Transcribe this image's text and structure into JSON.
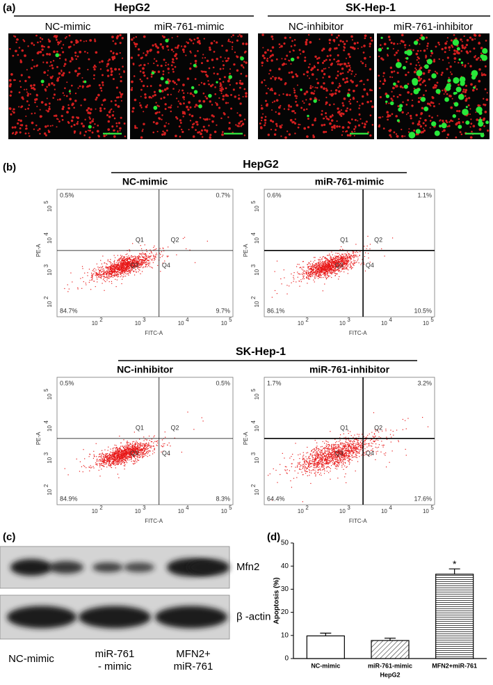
{
  "panel_a": {
    "label": "(a)",
    "groups": [
      {
        "title": "HepG2",
        "conditions": [
          "NC-mimic",
          "miR-761-mimic"
        ]
      },
      {
        "title": "SK-Hep-1",
        "conditions": [
          "NC-inhibitor",
          "miR-761-inhibitor"
        ]
      }
    ]
  },
  "panel_b": {
    "label": "(b)",
    "x_axis": "FITC-A",
    "y_axis": "PE-A",
    "quadrant_names": [
      "Q1",
      "Q2",
      "Q3",
      "Q4"
    ],
    "tick_base": "10",
    "tick_exponents": [
      "2",
      "3",
      "4",
      "5"
    ],
    "groups": [
      {
        "title": "HepG2",
        "plots": [
          {
            "title": "NC-mimic",
            "quadrants": [
              "0.5%",
              "0.7%",
              "84.7%",
              "9.7%"
            ]
          },
          {
            "title": "miR-761-mimic",
            "quadrants": [
              "0.6%",
              "1.1%",
              "86.1%",
              "10.5%"
            ]
          }
        ]
      },
      {
        "title": "SK-Hep-1",
        "plots": [
          {
            "title": "NC-inhibitor",
            "quadrants": [
              "0.5%",
              "0.5%",
              "84.9%",
              "8.3%"
            ]
          },
          {
            "title": "miR-761-inhibitor",
            "quadrants": [
              "1.7%",
              "3.2%",
              "64.4%",
              "17.6%"
            ]
          }
        ]
      }
    ]
  },
  "panel_c": {
    "label": "(c)",
    "bands": [
      "Mfn2",
      "β -actin"
    ],
    "lanes": [
      [
        "NC-mimic"
      ],
      [
        "miR-761",
        "- mimic"
      ],
      [
        "MFN2+",
        "miR-761"
      ]
    ]
  },
  "panel_d": {
    "label": "(d)",
    "chart": {
      "type": "bar",
      "ylabel": "Apoptosis (%)",
      "xlabel": "HepG2",
      "categories": [
        "NC-mimic",
        "miR-761-mimic",
        "MFN2+miR-761"
      ],
      "values": [
        9.8,
        7.8,
        36.5
      ],
      "errors": [
        1.2,
        1.0,
        2.3
      ],
      "significance": [
        null,
        null,
        "*"
      ],
      "ylim": [
        0,
        50
      ],
      "yticks": [
        0,
        10,
        20,
        30,
        40,
        50
      ]
    }
  }
}
